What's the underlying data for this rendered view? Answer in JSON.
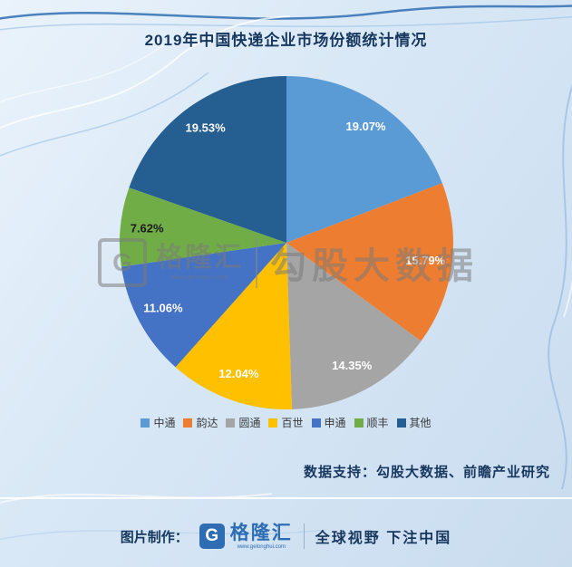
{
  "chart": {
    "title": "2019年中国快递企业市场份额统计情况",
    "source_note": "数据支持：勾股大数据、前瞻产业研究"
  },
  "chart_data": {
    "type": "pie",
    "title": "2019年中国快递企业市场份额统计情况",
    "categories": [
      "中通",
      "韵达",
      "圆通",
      "百世",
      "申通",
      "顺丰",
      "其他"
    ],
    "values": [
      19.07,
      15.79,
      14.35,
      12.04,
      11.06,
      7.62,
      19.53
    ],
    "labels": [
      "19.07%",
      "15.79%",
      "14.35%",
      "12.04%",
      "11.06%",
      "7.62%",
      "19.53%"
    ],
    "colors": [
      "#5B9BD5",
      "#ED7D31",
      "#A5A5A5",
      "#FFC000",
      "#4472C4",
      "#70AD47",
      "#255E91"
    ],
    "label_colors": [
      "#FFFFFF",
      "#FFFFFF",
      "#FFFFFF",
      "#FFFFFF",
      "#FFFFFF",
      "#1a1a1a",
      "#FFFFFF"
    ],
    "start_angle_deg": -90,
    "direction": "clockwise",
    "legend_position": "bottom"
  },
  "watermark": {
    "logo_letter": "G",
    "brand": "格隆汇",
    "brand_url": "www.gelonghui.com",
    "big_text": "勾股大数据"
  },
  "footer": {
    "made_by_label": "图片制作：",
    "logo_letter": "G",
    "brand": "格隆汇",
    "brand_url": "www.gelonghui.com",
    "slogan": "全球视野 下注中国"
  }
}
